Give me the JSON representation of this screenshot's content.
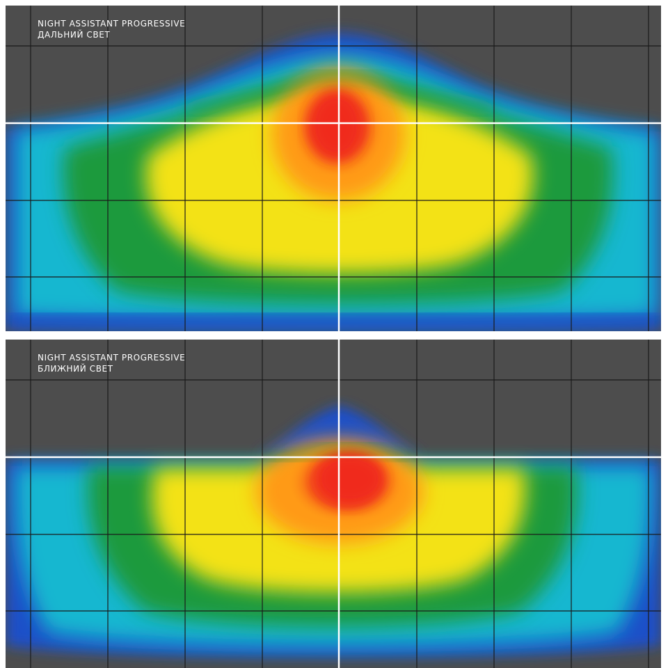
{
  "panels": [
    {
      "title": "NIGHT ASSISTANT PROGRESSIVE",
      "subtitle": "ДАЛЬНИЙ СВЕТ"
    },
    {
      "title": "NIGHT ASSISTANT PROGRESSIVE",
      "subtitle": "БЛИЖНИЙ СВЕТ"
    }
  ],
  "colors": {
    "background": "#4d4d4d",
    "grid": "#1a1a1a",
    "axes": "#ffffff",
    "scale": [
      "#1f4fc8",
      "#13b7d0",
      "#1a9a3c",
      "#f3e216",
      "#ff9a12",
      "#f02a1c"
    ]
  }
}
